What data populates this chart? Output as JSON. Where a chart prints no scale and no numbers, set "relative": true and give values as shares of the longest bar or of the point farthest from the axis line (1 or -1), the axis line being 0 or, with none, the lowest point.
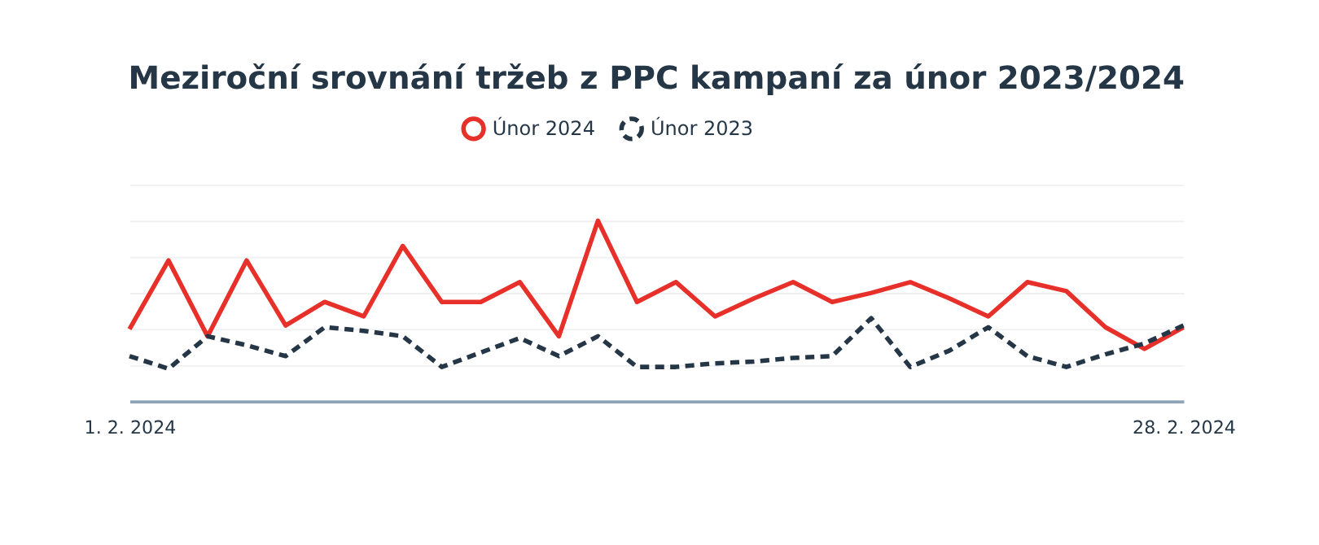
{
  "chart_data": {
    "type": "line",
    "title": "Meziroční srovnání tržeb z PPC kampaní za únor 2023/2024",
    "relative": true,
    "legend": "top",
    "grid": "y",
    "marker": "none",
    "x": [
      "2024-02-01",
      "2024-02-02",
      "2024-02-03",
      "2024-02-04",
      "2024-02-05",
      "2024-02-06",
      "2024-02-07",
      "2024-02-08",
      "2024-02-09",
      "2024-02-10",
      "2024-02-11",
      "2024-02-12",
      "2024-02-13",
      "2024-02-14",
      "2024-02-15",
      "2024-02-16",
      "2024-02-17",
      "2024-02-18",
      "2024-02-19",
      "2024-02-20",
      "2024-02-21",
      "2024-02-22",
      "2024-02-23",
      "2024-02-24",
      "2024-02-25",
      "2024-02-26",
      "2024-02-27",
      "2024-02-28"
    ],
    "xlim": [
      "2024-02-01",
      "2024-02-28"
    ],
    "xticks": [
      {
        "value": "2024-02-01",
        "label": "1. 2. 2024"
      },
      {
        "value": "2024-02-28",
        "label": "28. 2. 2024"
      }
    ],
    "series": [
      {
        "name": "Únor 2024",
        "color": "#e8302a",
        "line_style": "solid",
        "values": [
          0.4,
          0.78,
          0.36,
          0.78,
          0.42,
          0.55,
          0.47,
          0.86,
          0.55,
          0.55,
          0.66,
          0.36,
          1.0,
          0.55,
          0.66,
          0.47,
          0.57,
          0.66,
          0.55,
          0.6,
          0.66,
          0.57,
          0.47,
          0.66,
          0.61,
          0.41,
          0.29,
          0.41
        ]
      },
      {
        "name": "Únor 2023",
        "color": "#253746",
        "line_style": "dashed",
        "values": [
          0.25,
          0.18,
          0.36,
          0.31,
          0.25,
          0.41,
          0.39,
          0.36,
          0.19,
          0.27,
          0.35,
          0.25,
          0.36,
          0.19,
          0.19,
          0.21,
          0.22,
          0.24,
          0.25,
          0.46,
          0.19,
          0.28,
          0.41,
          0.25,
          0.19,
          0.26,
          0.32,
          0.42
        ]
      }
    ]
  }
}
